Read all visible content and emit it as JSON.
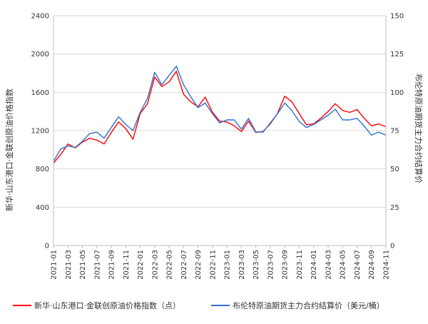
{
  "chart_data": {
    "type": "line",
    "title": "",
    "ylabel_left": "新华·山东港口·金联创原油价格指数",
    "ylabel_right": "布伦特原油期货主力合约结算价",
    "ylim_left": [
      0,
      2400
    ],
    "ylim_right": [
      0,
      150
    ],
    "yticks_left": [
      "0",
      "400",
      "800",
      "1200",
      "1600",
      "2000",
      "2400"
    ],
    "yticks_right": [
      "0",
      "25",
      "50",
      "75",
      "100",
      "125",
      "150"
    ],
    "xticks": [
      "2021-01",
      "2021-03",
      "2021-05",
      "2021-07",
      "2021-09",
      "2021-11",
      "2022-01",
      "2022-03",
      "2022-05",
      "2022-07",
      "2022-09",
      "2022-11",
      "2023-01",
      "2023-03",
      "2023-05",
      "2023-07",
      "2023-09",
      "2023-11",
      "2024-01",
      "2024-03",
      "2024-05",
      "2024-07",
      "2024-09",
      "2024-11"
    ],
    "grid": true,
    "legend_position": "bottom",
    "series": [
      {
        "name": "新华·山东港口·金联创原油价格指数（点）",
        "color": "#ff0000",
        "axis": "left",
        "x": [
          "2021-01",
          "2021-02",
          "2021-03",
          "2021-04",
          "2021-05",
          "2021-06",
          "2021-07",
          "2021-08",
          "2021-09",
          "2021-10",
          "2021-11",
          "2021-12",
          "2022-01",
          "2022-02",
          "2022-03",
          "2022-04",
          "2022-05",
          "2022-06",
          "2022-07",
          "2022-08",
          "2022-09",
          "2022-10",
          "2022-11",
          "2022-12",
          "2023-01",
          "2023-02",
          "2023-03",
          "2023-04",
          "2023-05",
          "2023-06",
          "2023-07",
          "2023-08",
          "2023-09",
          "2023-10",
          "2023-11",
          "2023-12",
          "2024-01",
          "2024-02",
          "2024-03",
          "2024-04",
          "2024-05",
          "2024-06",
          "2024-07",
          "2024-08",
          "2024-09",
          "2024-10",
          "2024-11"
        ],
        "values": [
          860,
          950,
          1060,
          1020,
          1080,
          1120,
          1100,
          1060,
          1180,
          1290,
          1220,
          1110,
          1380,
          1480,
          1760,
          1660,
          1710,
          1820,
          1580,
          1500,
          1450,
          1550,
          1390,
          1300,
          1290,
          1250,
          1190,
          1300,
          1180,
          1190,
          1270,
          1380,
          1560,
          1500,
          1380,
          1260,
          1270,
          1330,
          1400,
          1480,
          1410,
          1390,
          1420,
          1330,
          1250,
          1270,
          1240
        ]
      },
      {
        "name": "布伦特原油期货主力合约结算价（美元/桶）",
        "color": "#2f6fd0",
        "axis": "right",
        "x": [
          "2021-01",
          "2021-02",
          "2021-03",
          "2021-04",
          "2021-05",
          "2021-06",
          "2021-07",
          "2021-08",
          "2021-09",
          "2021-10",
          "2021-11",
          "2021-12",
          "2022-01",
          "2022-02",
          "2022-03",
          "2022-04",
          "2022-05",
          "2022-06",
          "2022-07",
          "2022-08",
          "2022-09",
          "2022-10",
          "2022-11",
          "2022-12",
          "2023-01",
          "2023-02",
          "2023-03",
          "2023-04",
          "2023-05",
          "2023-06",
          "2023-07",
          "2023-08",
          "2023-09",
          "2023-10",
          "2023-11",
          "2023-12",
          "2024-01",
          "2024-02",
          "2024-03",
          "2024-04",
          "2024-05",
          "2024-06",
          "2024-07",
          "2024-08",
          "2024-09",
          "2024-10",
          "2024-11"
        ],
        "values": [
          55,
          63,
          65,
          64,
          68,
          73,
          74,
          70,
          77,
          84,
          79,
          75,
          87,
          96,
          113,
          105,
          111,
          117,
          105,
          97,
          90,
          93,
          86,
          80,
          82,
          82,
          76,
          83,
          74,
          74,
          80,
          86,
          93,
          88,
          81,
          77,
          79,
          82,
          85,
          89,
          82,
          82,
          83,
          78,
          72,
          74,
          72
        ]
      }
    ]
  }
}
